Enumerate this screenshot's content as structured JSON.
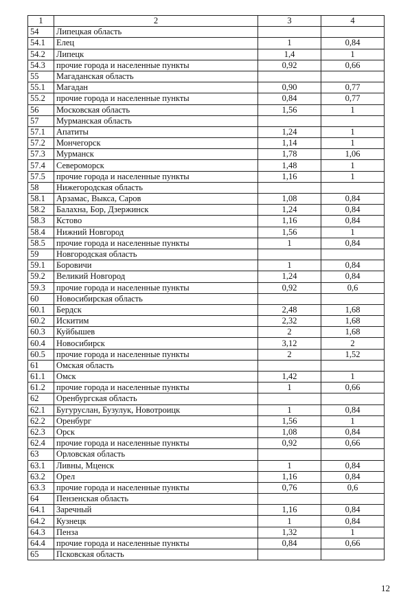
{
  "header": [
    "1",
    "2",
    "3",
    "4"
  ],
  "rows": [
    {
      "no": "54",
      "name": "Липецкая область",
      "c3": "",
      "c4": "",
      "kind": "region"
    },
    {
      "no": "54.1",
      "name": "Елец",
      "c3": "1",
      "c4": "0,84",
      "kind": "city"
    },
    {
      "no": "54.2",
      "name": "Липецк",
      "c3": "1,4",
      "c4": "1",
      "kind": "city"
    },
    {
      "no": "54.3",
      "name": "прочие города и населенные пункты",
      "c3": "0,92",
      "c4": "0,66",
      "kind": "city"
    },
    {
      "no": "55",
      "name": "Магаданская область",
      "c3": "",
      "c4": "",
      "kind": "region"
    },
    {
      "no": "55.1",
      "name": "Магадан",
      "c3": "0,90",
      "c4": "0,77",
      "kind": "city"
    },
    {
      "no": "55.2",
      "name": "прочие города и населенные пункты",
      "c3": "0,84",
      "c4": "0,77",
      "kind": "city"
    },
    {
      "no": "56",
      "name": "Московская область",
      "c3": "1,56",
      "c4": "1",
      "kind": "region"
    },
    {
      "no": "57",
      "name": "Мурманская область",
      "c3": "",
      "c4": "",
      "kind": "region"
    },
    {
      "no": "57.1",
      "name": "Апатиты",
      "c3": "1,24",
      "c4": "1",
      "kind": "city"
    },
    {
      "no": "57.2",
      "name": "Мончегорск",
      "c3": "1,14",
      "c4": "1",
      "kind": "city"
    },
    {
      "no": "57.3",
      "name": "Мурманск",
      "c3": "1,78",
      "c4": "1,06",
      "kind": "city"
    },
    {
      "no": "57.4",
      "name": "Североморск",
      "c3": "1,48",
      "c4": "1",
      "kind": "city"
    },
    {
      "no": "57.5",
      "name": "прочие города и населенные пункты",
      "c3": "1,16",
      "c4": "1",
      "kind": "city"
    },
    {
      "no": "58",
      "name": "Нижегородская область",
      "c3": "",
      "c4": "",
      "kind": "region"
    },
    {
      "no": "58.1",
      "name": "Арзамас, Выкса, Саров",
      "c3": "1,08",
      "c4": "0,84",
      "kind": "city"
    },
    {
      "no": "58.2",
      "name": "Балахна, Бор, Дзержинск",
      "c3": "1,24",
      "c4": "0,84",
      "kind": "city"
    },
    {
      "no": "58.3",
      "name": "Кстово",
      "c3": "1,16",
      "c4": "0,84",
      "kind": "city"
    },
    {
      "no": "58.4",
      "name": "Нижний Новгород",
      "c3": "1,56",
      "c4": "1",
      "kind": "city"
    },
    {
      "no": "58.5",
      "name": "прочие города и населенные пункты",
      "c3": "1",
      "c4": "0,84",
      "kind": "city"
    },
    {
      "no": "59",
      "name": "Новгородская область",
      "c3": "",
      "c4": "",
      "kind": "region"
    },
    {
      "no": "59.1",
      "name": "Боровичи",
      "c3": "1",
      "c4": "0,84",
      "kind": "city"
    },
    {
      "no": "59.2",
      "name": "Великий Новгород",
      "c3": "1,24",
      "c4": "0,84",
      "kind": "city"
    },
    {
      "no": "59.3",
      "name": "прочие города и населенные пункты",
      "c3": "0,92",
      "c4": "0,6",
      "kind": "city"
    },
    {
      "no": "60",
      "name": "Новосибирская область",
      "c3": "",
      "c4": "",
      "kind": "region"
    },
    {
      "no": "60.1",
      "name": "Бердск",
      "c3": "2,48",
      "c4": "1,68",
      "kind": "city"
    },
    {
      "no": "60.2",
      "name": "Искитим",
      "c3": "2,32",
      "c4": "1,68",
      "kind": "city"
    },
    {
      "no": "60.3",
      "name": "Куйбышев",
      "c3": "2",
      "c4": "1,68",
      "kind": "city"
    },
    {
      "no": "60.4",
      "name": "Новосибирск",
      "c3": "3,12",
      "c4": "2",
      "kind": "city"
    },
    {
      "no": "60.5",
      "name": "прочие города и населенные пункты",
      "c3": "2",
      "c4": "1,52",
      "kind": "city"
    },
    {
      "no": "61",
      "name": "Омская область",
      "c3": "",
      "c4": "",
      "kind": "region"
    },
    {
      "no": "61.1",
      "name": "Омск",
      "c3": "1,42",
      "c4": "1",
      "kind": "city"
    },
    {
      "no": "61.2",
      "name": "прочие города и населенные пункты",
      "c3": "1",
      "c4": "0,66",
      "kind": "city"
    },
    {
      "no": "62",
      "name": "Оренбургская область",
      "c3": "",
      "c4": "",
      "kind": "region"
    },
    {
      "no": "62.1",
      "name": "Бугуруслан, Бузулук, Новотроицк",
      "c3": "1",
      "c4": "0,84",
      "kind": "city"
    },
    {
      "no": "62.2",
      "name": "Оренбург",
      "c3": "1,56",
      "c4": "1",
      "kind": "city"
    },
    {
      "no": "62.3",
      "name": "Орск",
      "c3": "1,08",
      "c4": "0,84",
      "kind": "city"
    },
    {
      "no": "62.4",
      "name": "прочие города и населенные пункты",
      "c3": "0,92",
      "c4": "0,66",
      "kind": "city"
    },
    {
      "no": "63",
      "name": "Орловская область",
      "c3": "",
      "c4": "",
      "kind": "region"
    },
    {
      "no": "63.1",
      "name": "Ливны, Мценск",
      "c3": "1",
      "c4": "0,84",
      "kind": "city"
    },
    {
      "no": "63.2",
      "name": "Орел",
      "c3": "1,16",
      "c4": "0,84",
      "kind": "city"
    },
    {
      "no": "63.3",
      "name": "прочие города и населенные пункты",
      "c3": "0,76",
      "c4": "0,6",
      "kind": "city"
    },
    {
      "no": "64",
      "name": "Пензенская область",
      "c3": "",
      "c4": "",
      "kind": "region"
    },
    {
      "no": "64.1",
      "name": "Заречный",
      "c3": "1,16",
      "c4": "0,84",
      "kind": "city"
    },
    {
      "no": "64.2",
      "name": "Кузнецк",
      "c3": "1",
      "c4": "0,84",
      "kind": "city"
    },
    {
      "no": "64.3",
      "name": "Пенза",
      "c3": "1,32",
      "c4": "1",
      "kind": "city"
    },
    {
      "no": "64.4",
      "name": "прочие города и населенные пункты",
      "c3": "0,84",
      "c4": "0,66",
      "kind": "city"
    },
    {
      "no": "65",
      "name": "Псковская область",
      "c3": "",
      "c4": "",
      "kind": "region"
    }
  ],
  "page_number": "12"
}
